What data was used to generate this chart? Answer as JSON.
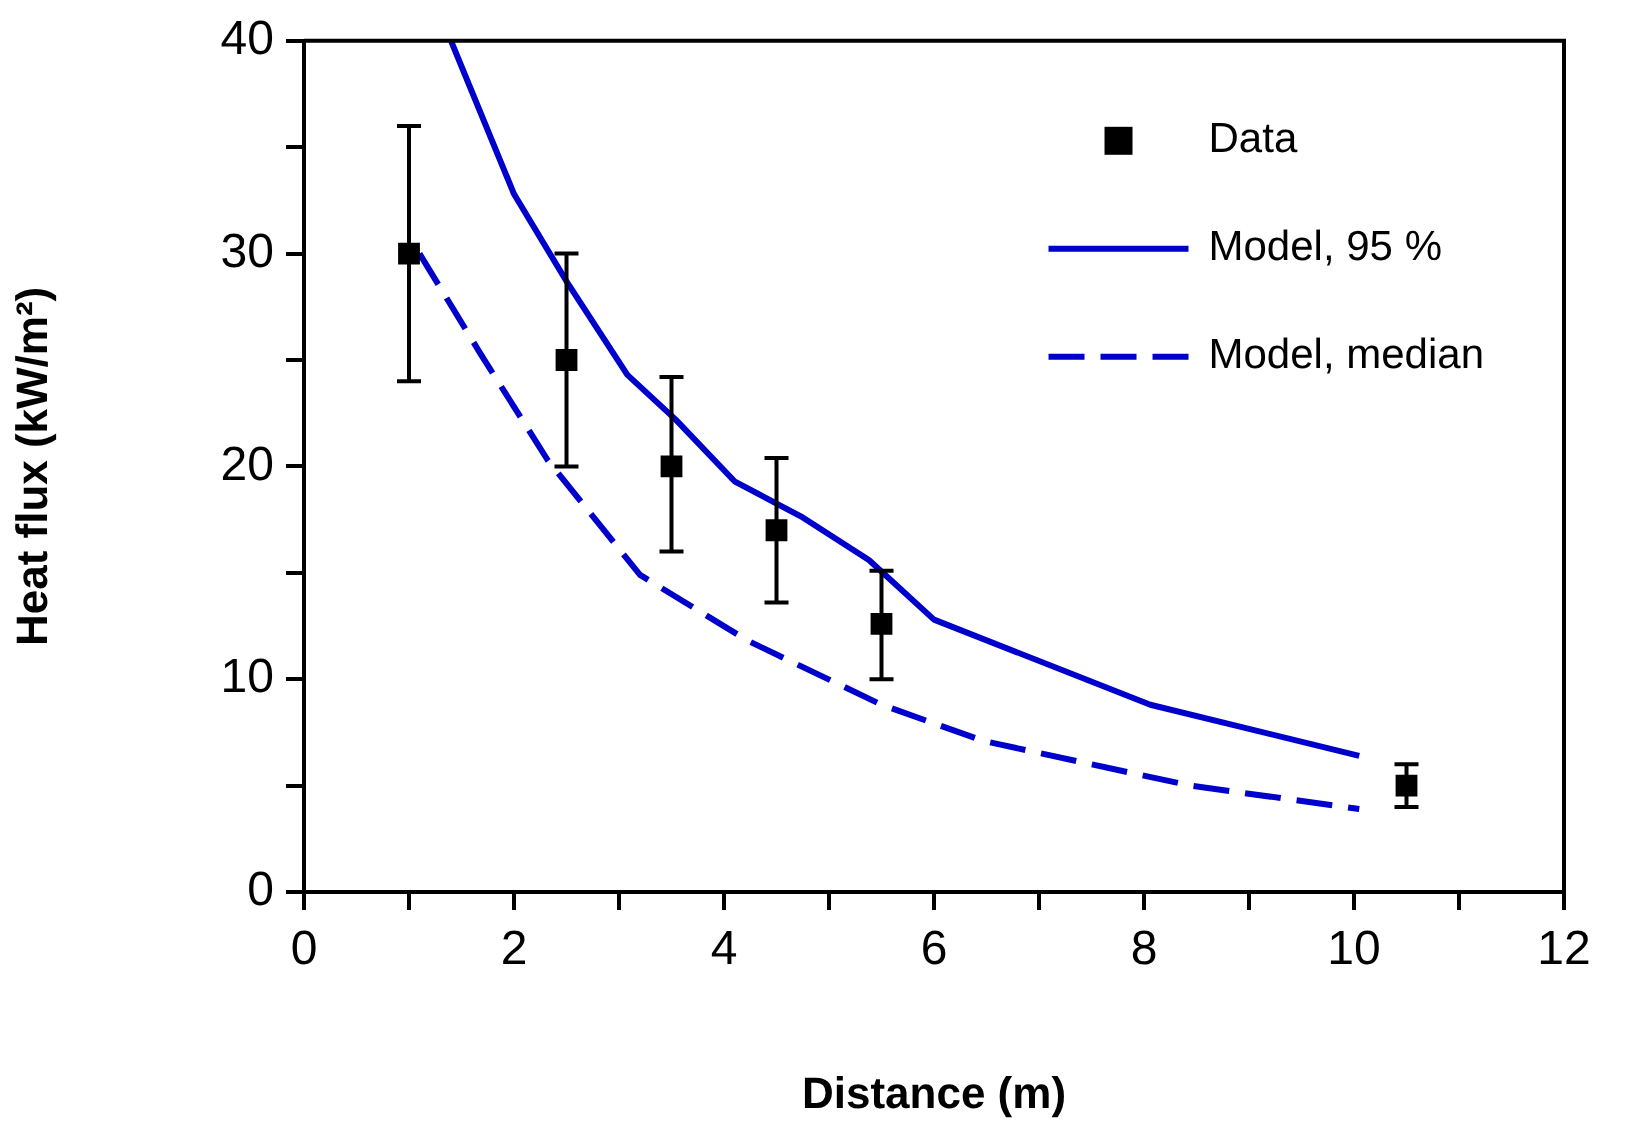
{
  "chart_data": {
    "type": "line",
    "xlabel": "Distance (m)",
    "ylabel": "Heat flux (kW/m²)",
    "xlim": [
      0,
      12
    ],
    "xticks": [
      0,
      {
        "value": 1,
        "label": null
      },
      2,
      {
        "value": 3,
        "label": null
      },
      4,
      {
        "value": 5,
        "label": null
      },
      6,
      {
        "value": 7,
        "label": null
      },
      8,
      {
        "value": 9,
        "label": null
      },
      10,
      {
        "value": 11,
        "label": null
      },
      12
    ],
    "ylim": [
      0,
      40
    ],
    "yticks": [
      0,
      {
        "value": 5,
        "label": null
      },
      10,
      {
        "value": 15,
        "label": null
      },
      20,
      {
        "value": 25,
        "label": null
      },
      30,
      {
        "value": 35,
        "label": null
      },
      40
    ],
    "grid": false,
    "legend": "top right",
    "series": [
      {
        "name": "Data",
        "type": "scatter",
        "marker": "square",
        "color": "#000000",
        "x": [
          1,
          2.5,
          3.5,
          4.5,
          5.5,
          10.5
        ],
        "values": [
          30,
          25,
          20,
          17,
          12.6,
          5
        ],
        "errors": [
          [
            24,
            36
          ],
          [
            20,
            30
          ],
          [
            16,
            24.2
          ],
          [
            13.6,
            20.4
          ],
          [
            10,
            15.1
          ],
          [
            4,
            6
          ]
        ]
      },
      {
        "name": "Model, 95 %",
        "marker": "none",
        "line_style": "solid",
        "color": "#0000cc",
        "x": [
          1.4,
          2,
          2.5,
          3.08,
          3.54,
          4.1,
          4.75,
          5.38,
          6,
          8.06,
          10.05
        ],
        "values": [
          40,
          32.8,
          28.7,
          24.3,
          22.2,
          19.3,
          17.6,
          15.6,
          12.8,
          8.8,
          6.4
        ]
      },
      {
        "name": "Model, median",
        "marker": "none",
        "line_style": "dashed",
        "color": "#0000cc",
        "x": [
          1.1,
          1.68,
          2.32,
          3.2,
          4.23,
          5.5,
          6.47,
          8.44,
          9.47,
          10.05
        ],
        "values": [
          30,
          25.3,
          20.3,
          14.9,
          11.8,
          8.8,
          7.1,
          5,
          4.3,
          3.9
        ]
      }
    ]
  }
}
